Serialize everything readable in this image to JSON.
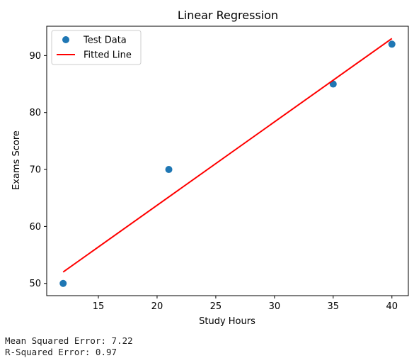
{
  "chart_data": {
    "type": "scatter",
    "title": "Linear Regression",
    "xlabel": "Study Hours",
    "ylabel": "Exams Score",
    "xlim": [
      10.6,
      41.4
    ],
    "ylim": [
      47.85,
      95.15
    ],
    "xticks": [
      15,
      20,
      25,
      30,
      35,
      40
    ],
    "yticks": [
      50,
      60,
      70,
      80,
      90
    ],
    "grid": false,
    "legend_position": "top-left",
    "series": [
      {
        "name": "Test Data",
        "kind": "scatter",
        "color": "#1f77b4",
        "points": [
          {
            "x": 12,
            "y": 50
          },
          {
            "x": 21,
            "y": 70
          },
          {
            "x": 35,
            "y": 85
          },
          {
            "x": 40,
            "y": 92
          }
        ]
      },
      {
        "name": "Fitted Line",
        "kind": "line",
        "color": "#ff0000",
        "points": [
          {
            "x": 12,
            "y": 52
          },
          {
            "x": 40,
            "y": 93
          }
        ]
      }
    ]
  },
  "output": {
    "mse_line": "Mean Squared Error: 7.22",
    "r2_line": "R-Squared Error: 0.97"
  }
}
